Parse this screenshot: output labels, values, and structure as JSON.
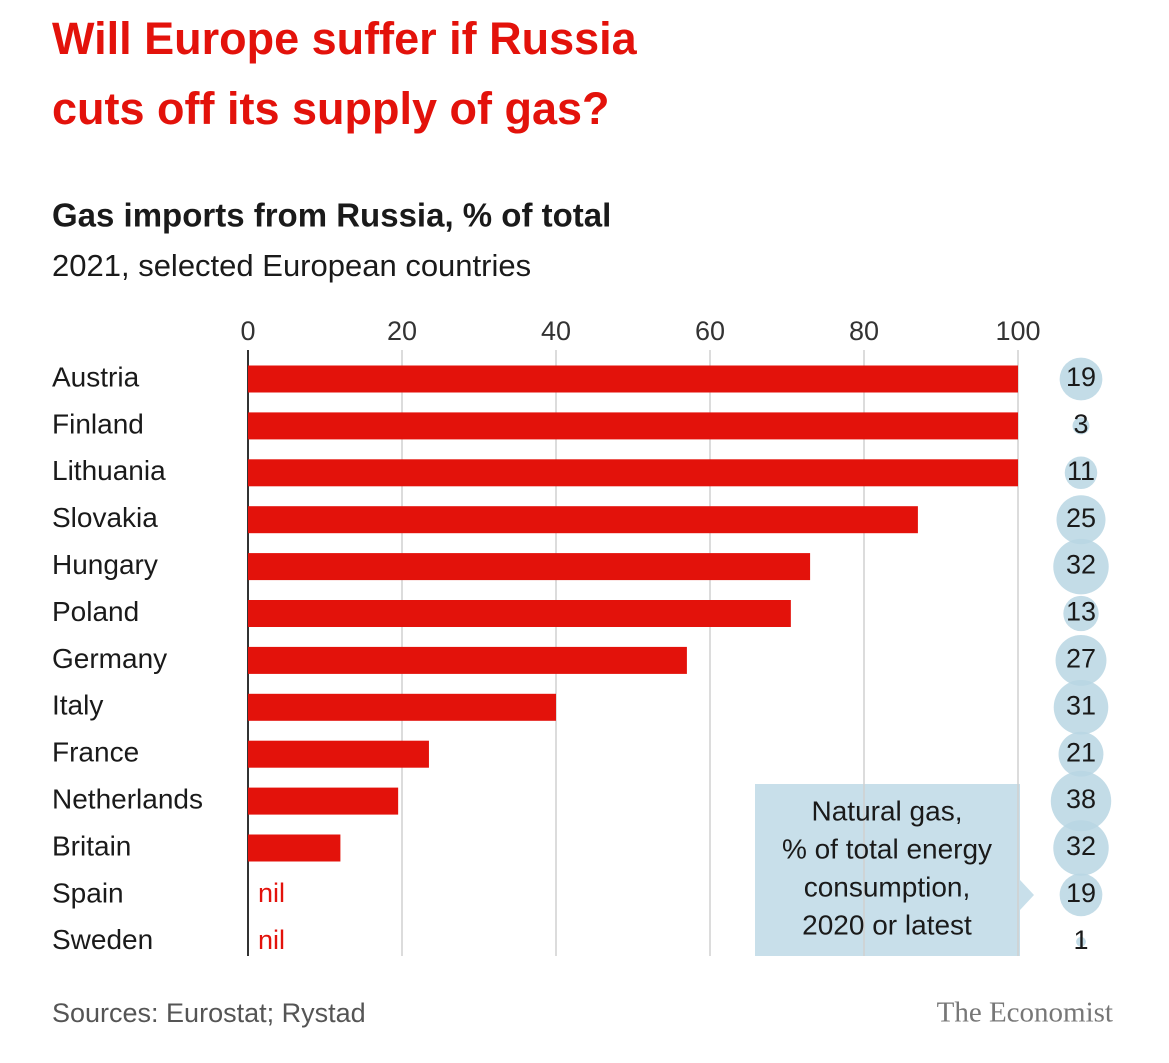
{
  "chart_data": {
    "type": "bar",
    "orientation": "horizontal",
    "title_lines": [
      "Will Europe suffer if Russia",
      "cuts off its supply of gas?"
    ],
    "subtitle": "Gas imports from Russia, % of total",
    "subtitle2": "2021, selected European countries",
    "categories": [
      "Austria",
      "Finland",
      "Lithuania",
      "Slovakia",
      "Hungary",
      "Poland",
      "Germany",
      "Italy",
      "France",
      "Netherlands",
      "Britain",
      "Spain",
      "Sweden"
    ],
    "values": [
      100,
      100,
      100,
      87,
      73,
      70.5,
      57,
      40,
      23.5,
      19.5,
      12,
      0,
      0
    ],
    "value_labels": [
      null,
      null,
      null,
      null,
      null,
      null,
      null,
      null,
      null,
      null,
      null,
      "nil",
      "nil"
    ],
    "color": "#e3120b",
    "xlim": [
      0,
      100
    ],
    "xticks": [
      0,
      20,
      40,
      60,
      80,
      100
    ],
    "grid": true,
    "bubbles": {
      "color": "#b9d6e3",
      "values": [
        19,
        3,
        11,
        25,
        32,
        13,
        27,
        31,
        21,
        38,
        32,
        19,
        1
      ]
    },
    "annotation_lines": [
      "Natural gas,",
      "% of total energy",
      "consumption,",
      "2020 or latest"
    ],
    "source": "Sources: Eurostat; Rystad",
    "brand": "The Economist"
  }
}
